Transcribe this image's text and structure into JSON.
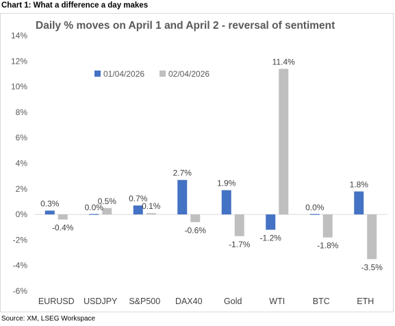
{
  "header": {
    "title": "Chart 1: What a difference a day makes"
  },
  "footer": {
    "source": "Source: XM, LSEG Workspace"
  },
  "chart_data": {
    "type": "bar",
    "title": "Daily % moves on April 1 and April 2 - reversal of sentiment",
    "categories": [
      "EURUSD",
      "USDJPY",
      "S&P500",
      "DAX40",
      "Gold",
      "WTI",
      "BTC",
      "ETH"
    ],
    "series": [
      {
        "name": "01/04/2026",
        "color": "#4472c4",
        "values": [
          0.3,
          0.0,
          0.7,
          2.7,
          1.9,
          -1.2,
          0.0,
          1.8
        ],
        "labels": [
          "0.3%",
          "0.0%",
          "0.7%",
          "2.7%",
          "1.9%",
          "-1.2%",
          "0.0%",
          "1.8%"
        ]
      },
      {
        "name": "02/04/2026",
        "color": "#bfbfbf",
        "values": [
          -0.4,
          0.5,
          0.1,
          -0.6,
          -1.7,
          11.4,
          -1.8,
          -3.5
        ],
        "labels": [
          "-0.4%",
          "0.5%",
          "0.1%",
          "-0.6%",
          "-1.7%",
          "11.4%",
          "-1.8%",
          "-3.5%"
        ]
      }
    ],
    "ylim": [
      -6,
      14
    ],
    "yticks": [
      "14%",
      "12%",
      "10%",
      "8%",
      "6%",
      "4%",
      "2%",
      "0%",
      "-2%",
      "-4%",
      "-6%"
    ],
    "grid": false,
    "legend_position": "top-left"
  }
}
